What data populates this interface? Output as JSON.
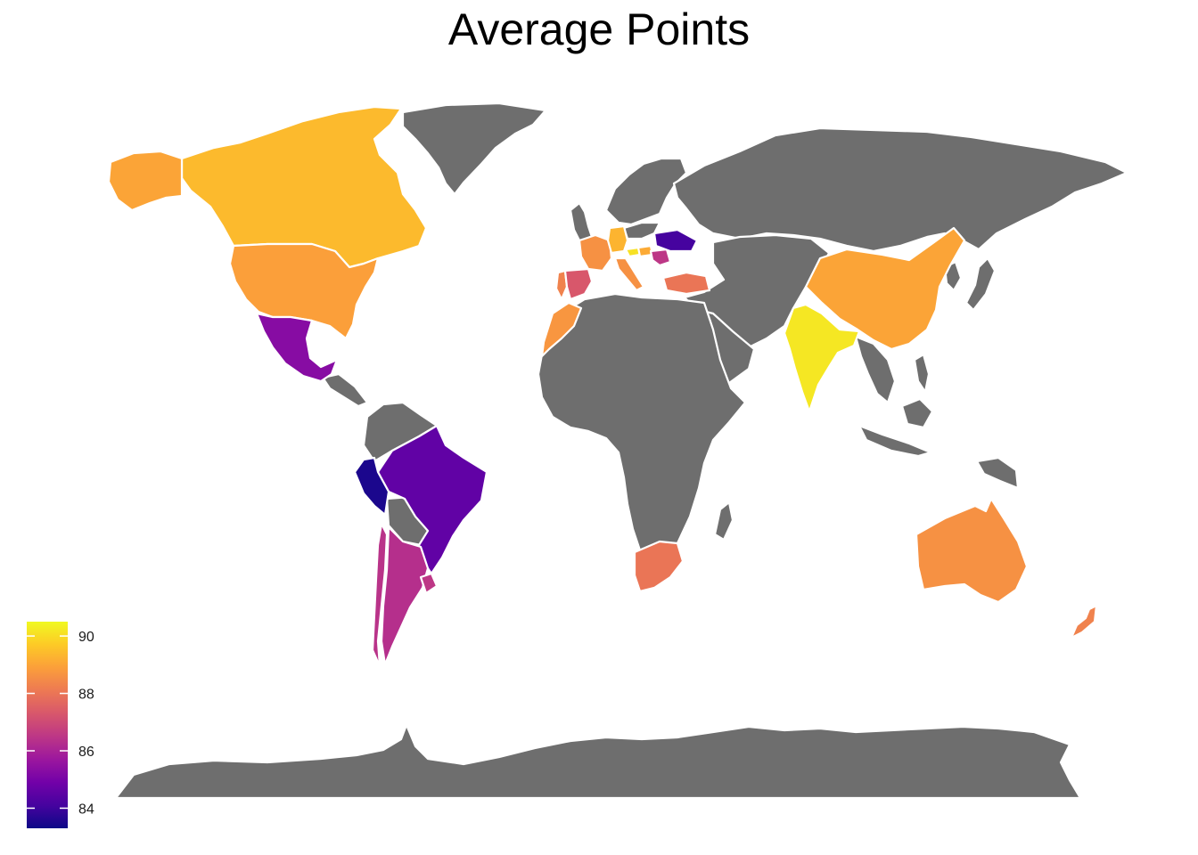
{
  "title": "Average Points",
  "na_color": "#6e6e6e",
  "legend": {
    "min": 83.3,
    "max": 90.5,
    "ticks": [
      {
        "value": 84,
        "label": "84"
      },
      {
        "value": 86,
        "label": "86"
      },
      {
        "value": 88,
        "label": "88"
      },
      {
        "value": 90,
        "label": "90"
      }
    ],
    "gradient": [
      "#0d0887",
      "#46039f",
      "#7201a8",
      "#9c179e",
      "#bd3786",
      "#d8576b",
      "#ed7953",
      "#fb9f3a",
      "#fdca26",
      "#f0f921"
    ]
  },
  "regions": [
    {
      "name": "Canada",
      "value": 89.4
    },
    {
      "name": "Alaska",
      "value": 89.0
    },
    {
      "name": "United States",
      "value": 88.9
    },
    {
      "name": "Mexico",
      "value": 85.3
    },
    {
      "name": "Brazil",
      "value": 84.6
    },
    {
      "name": "Peru",
      "value": 83.5
    },
    {
      "name": "Chile",
      "value": 86.4
    },
    {
      "name": "Argentina",
      "value": 86.3
    },
    {
      "name": "Uruguay",
      "value": 86.5
    },
    {
      "name": "Portugal",
      "value": 88.3
    },
    {
      "name": "Spain",
      "value": 87.3
    },
    {
      "name": "France",
      "value": 88.6
    },
    {
      "name": "Germany",
      "value": 89.3
    },
    {
      "name": "Austria",
      "value": 90.1
    },
    {
      "name": "Hungary",
      "value": 89.1
    },
    {
      "name": "Italy",
      "value": 88.6
    },
    {
      "name": "Bulgaria",
      "value": 86.5
    },
    {
      "name": "Ukraine",
      "value": 84.1
    },
    {
      "name": "Turkey",
      "value": 88.0
    },
    {
      "name": "Morocco",
      "value": 88.7
    },
    {
      "name": "India",
      "value": 90.2
    },
    {
      "name": "China",
      "value": 89.0
    },
    {
      "name": "Australia",
      "value": 88.6
    },
    {
      "name": "New Zealand",
      "value": 88.3
    },
    {
      "name": "South Africa",
      "value": 88.0
    }
  ],
  "unfilled_regions": [
    "Greenland",
    "Russia",
    "Africa",
    "Middle East",
    "Southeast Asia",
    "Antarctica",
    "Scandinavia"
  ]
}
